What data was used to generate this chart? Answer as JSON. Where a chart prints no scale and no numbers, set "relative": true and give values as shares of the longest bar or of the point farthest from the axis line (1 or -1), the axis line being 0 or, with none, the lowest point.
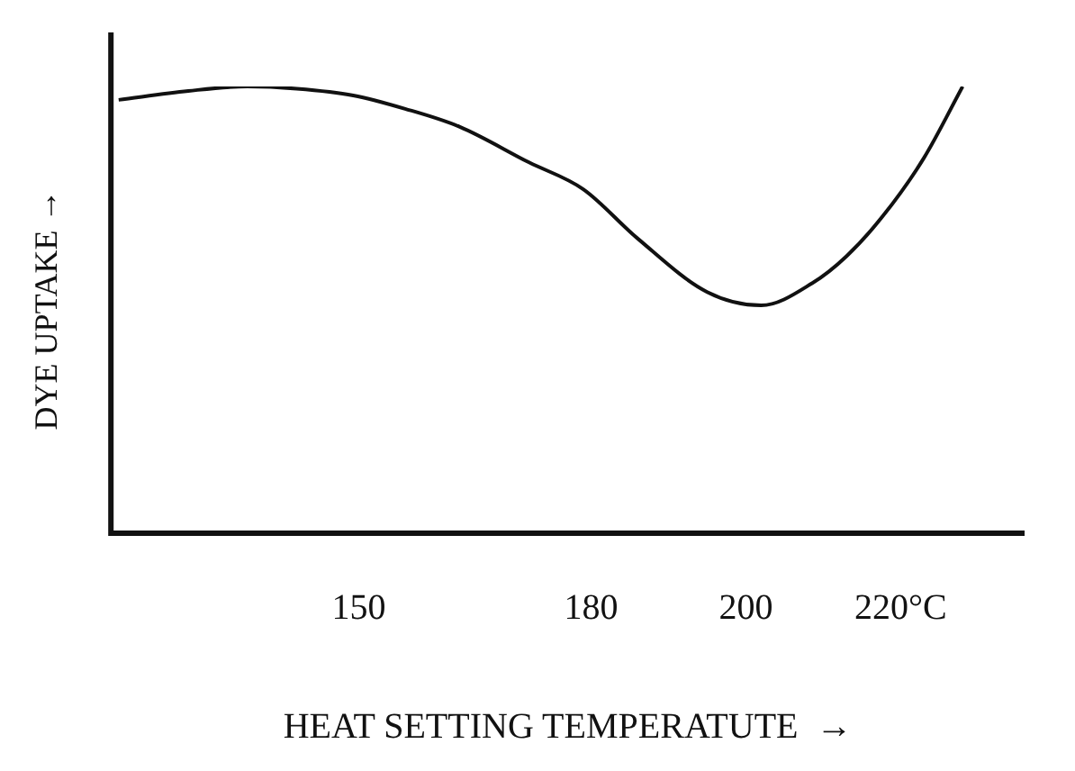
{
  "chart_data": {
    "type": "line",
    "xlabel": "HEAT SETTING TEMPERATUTE  →",
    "ylabel": "DYE UPTAKE →",
    "relative": true,
    "xlim": [
      118,
      236
    ],
    "xticks": [
      150,
      180,
      200,
      {
        "value": 220,
        "label": "220°C"
      }
    ],
    "grid": false,
    "legend": false,
    "marker": "none",
    "line_style": "solid",
    "series": [
      {
        "color": "#111111",
        "x": [
          119,
          128,
          135.6,
          142,
          149.3,
          156,
          163,
          172,
          179,
          186,
          195,
          202,
          208.6,
          213,
          217.7,
          223,
          228
        ],
        "values": [
          0.97,
          0.99,
          1.0,
          0.995,
          0.98,
          0.95,
          0.91,
          0.83,
          0.77,
          0.66,
          0.54,
          0.51,
          0.56,
          0.62,
          0.71,
          0.84,
          1.0
        ]
      }
    ]
  }
}
